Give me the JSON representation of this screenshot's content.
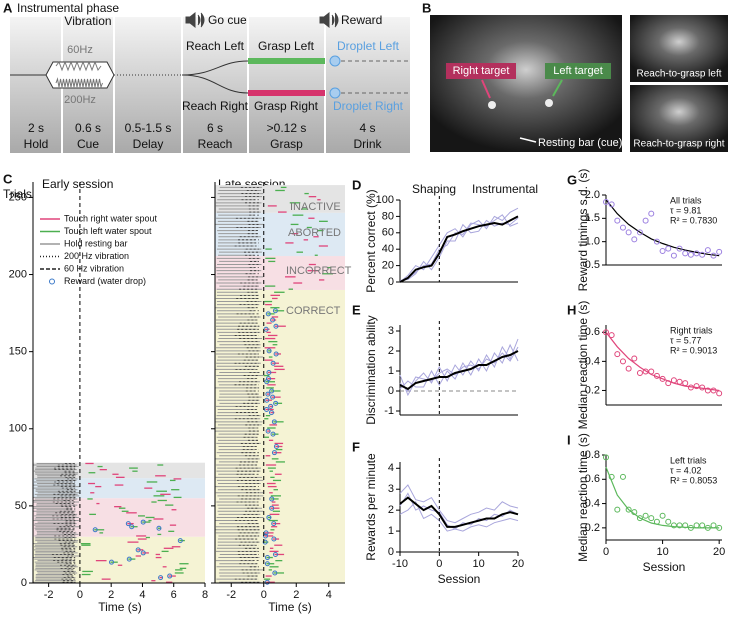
{
  "panel_a": {
    "label": "A",
    "title": "Instrumental phase",
    "vibration": "Vibration",
    "freq_high": "60Hz",
    "freq_low": "200Hz",
    "go_cue": "Go cue",
    "reward": "Reward",
    "reach_left": "Reach Left",
    "reach_right": "Reach Right",
    "grasp_left": "Grasp Left",
    "grasp_right": "Grasp Right",
    "droplet_left": "Droplet Left",
    "droplet_right": "Droplet Right",
    "durations": [
      "2 s",
      "0.6 s",
      "0.5-1.5 s",
      "6 s",
      ">0.12 s",
      "4 s"
    ],
    "phases": [
      "Hold",
      "Cue",
      "Delay",
      "Reach",
      "Grasp",
      "Drink"
    ]
  },
  "panel_b": {
    "label": "B",
    "right_target": "Right target",
    "left_target": "Left target",
    "resting_bar": "Resting bar (cue)",
    "reach_left": "Reach-to-grasp left",
    "reach_right": "Reach-to-grasp right"
  },
  "panel_c": {
    "label": "C",
    "ylabel": "Trials",
    "ylim": [
      0,
      260
    ],
    "yticks": [
      0,
      50,
      100,
      150,
      200,
      250
    ],
    "xlabel": "Time (s)",
    "vline": 0,
    "early": {
      "title": "Early session",
      "xlim": [
        -3,
        8
      ],
      "xticks": [
        -2,
        0,
        2,
        4,
        6,
        8
      ]
    },
    "late": {
      "title": "Late session",
      "xlim": [
        -3,
        5
      ],
      "xticks": [
        -2,
        0,
        2,
        4
      ]
    },
    "legend": [
      {
        "label": "Touch right water spout",
        "color": "#e0457b",
        "style": "solid"
      },
      {
        "label": "Touch left water spout",
        "color": "#4caf50",
        "style": "solid"
      },
      {
        "label": "Hold resting bar",
        "color": "#999999",
        "style": "solid"
      },
      {
        "label": "200 Hz vibration",
        "color": "#222222",
        "style": "dotted"
      },
      {
        "label": "60 Hz vibration",
        "color": "#222222",
        "style": "dashed"
      },
      {
        "label": "Reward (water drop)",
        "color": "#3a78c8",
        "style": "marker"
      }
    ],
    "outcomes": [
      "INACTIVE",
      "ABORTED",
      "INCORRECT",
      "CORRECT"
    ]
  },
  "chart_data": [
    {
      "panel": "D",
      "type": "line",
      "ylabel": "Percent correct  (%)",
      "annotations": [
        "Shaping",
        "Instrumental"
      ],
      "x": [
        -10,
        -8,
        -6,
        -4,
        -2,
        0,
        2,
        4,
        6,
        8,
        10,
        12,
        14,
        16,
        18,
        20
      ],
      "xlim": [
        -10,
        20
      ],
      "vline": 0,
      "ylim": [
        0,
        100
      ],
      "yticks": [
        0,
        20,
        40,
        60,
        80,
        100
      ],
      "series": [
        {
          "color": "#a9a6dc",
          "values": [
            0,
            8,
            20,
            15,
            30,
            45,
            60,
            65,
            55,
            70,
            75,
            65,
            80,
            75,
            85,
            90
          ]
        },
        {
          "color": "#a9a6dc",
          "values": [
            2,
            3,
            10,
            25,
            15,
            30,
            50,
            50,
            70,
            60,
            62,
            75,
            68,
            72,
            70,
            78
          ]
        },
        {
          "color": "#a9a6dc",
          "values": [
            0,
            5,
            12,
            20,
            22,
            40,
            45,
            60,
            58,
            72,
            70,
            68,
            75,
            82,
            68,
            72
          ]
        },
        {
          "color": "#000000",
          "values": [
            0,
            5,
            15,
            18,
            20,
            35,
            55,
            58,
            62,
            65,
            68,
            70,
            72,
            70,
            75,
            80
          ]
        }
      ]
    },
    {
      "panel": "E",
      "type": "line",
      "ylabel": "Discrimination ability",
      "x": [
        -10,
        -8,
        -6,
        -4,
        -2,
        0,
        2,
        4,
        6,
        8,
        10,
        12,
        14,
        16,
        18,
        20
      ],
      "xlim": [
        -10,
        20
      ],
      "vline": 0,
      "hline": 0,
      "ylim": [
        -1.2,
        3.3
      ],
      "yticks": [
        -1,
        0,
        1,
        2,
        3
      ],
      "series": [
        {
          "color": "#a9a6dc",
          "values": [
            0.8,
            -0.2,
            0.5,
            0.9,
            0.4,
            1.2,
            0.5,
            1.3,
            0.8,
            1.5,
            1.0,
            1.8,
            1.2,
            2.2,
            1.6,
            2.6
          ]
        },
        {
          "color": "#a9a6dc",
          "values": [
            0.1,
            0.5,
            0.2,
            0.2,
            1.0,
            0.3,
            1.0,
            0.6,
            1.4,
            0.8,
            1.6,
            1.0,
            1.9,
            1.4,
            2.3,
            1.5
          ]
        },
        {
          "color": "#a9a6dc",
          "values": [
            0.4,
            0.0,
            0.7,
            0.6,
            0.5,
            0.9,
            1.1,
            0.8,
            1.2,
            1.3,
            1.1,
            1.6,
            1.4,
            1.9,
            1.5,
            2.2
          ]
        },
        {
          "color": "#000000",
          "values": [
            0.3,
            0.1,
            0.4,
            0.5,
            0.6,
            0.7,
            0.7,
            0.9,
            1.0,
            1.1,
            1.3,
            1.3,
            1.5,
            1.7,
            1.8,
            2.0
          ]
        }
      ]
    },
    {
      "panel": "F",
      "type": "line",
      "ylabel": "Rewards per minute",
      "xlabel": "Session",
      "x": [
        -10,
        -8,
        -6,
        -4,
        -2,
        0,
        2,
        4,
        6,
        8,
        10,
        12,
        14,
        16,
        18,
        20
      ],
      "xlim": [
        -10,
        20
      ],
      "xticks": [
        -10,
        0,
        10,
        20
      ],
      "vline": 0,
      "ylim": [
        0,
        4.3
      ],
      "yticks": [
        0,
        1,
        2,
        3,
        4
      ],
      "series": [
        {
          "color": "#a9a6dc",
          "values": [
            2.8,
            3.2,
            2.5,
            2.4,
            2.6,
            2.0,
            1.5,
            1.4,
            1.6,
            1.8,
            1.9,
            2.1,
            2.0,
            2.4,
            2.2,
            2.1
          ]
        },
        {
          "color": "#a9a6dc",
          "values": [
            1.8,
            2.0,
            2.4,
            1.6,
            1.8,
            1.5,
            1.0,
            1.1,
            1.0,
            1.2,
            1.3,
            1.2,
            1.4,
            1.5,
            1.6,
            1.5
          ]
        },
        {
          "color": "#a9a6dc",
          "values": [
            2.2,
            2.8,
            2.0,
            2.2,
            2.0,
            1.9,
            1.3,
            1.1,
            1.4,
            1.3,
            1.6,
            1.5,
            1.8,
            1.7,
            2.0,
            1.8
          ]
        },
        {
          "color": "#000000",
          "values": [
            2.3,
            2.6,
            2.3,
            2.0,
            2.2,
            1.8,
            1.2,
            1.2,
            1.3,
            1.4,
            1.5,
            1.6,
            1.6,
            1.8,
            1.9,
            1.8
          ]
        }
      ]
    },
    {
      "panel": "G",
      "type": "scatter",
      "ylabel": "Reward timings s.d. (s)",
      "annotations": [
        "All trials",
        "τ = 9.81",
        "R² = 0.7830"
      ],
      "xlim": [
        0,
        20.5
      ],
      "ylim": [
        0.5,
        2.0
      ],
      "yticks": [
        {
          "value": 0.5,
          "label": "0.5"
        },
        {
          "value": 1.0,
          "label": "1.0"
        },
        {
          "value": 1.5,
          "label": "1.5"
        },
        {
          "value": 2.0,
          "label": "2.0"
        }
      ],
      "color": "#9b7fe0",
      "x": [
        0,
        1,
        2,
        3,
        4,
        5,
        6,
        7,
        8,
        9,
        10,
        11,
        12,
        13,
        14,
        15,
        16,
        17,
        18,
        19,
        20
      ],
      "values": [
        1.85,
        1.8,
        1.45,
        1.3,
        1.2,
        1.05,
        1.2,
        1.45,
        1.6,
        1.0,
        0.8,
        0.85,
        0.7,
        0.85,
        0.75,
        0.72,
        0.75,
        0.72,
        0.82,
        0.7,
        0.78
      ],
      "fit_color": "#000000",
      "fit_x": [
        0,
        2,
        4,
        6,
        8,
        10,
        12,
        14,
        16,
        18,
        20
      ],
      "fit_values": [
        1.9,
        1.6,
        1.37,
        1.2,
        1.06,
        0.96,
        0.88,
        0.82,
        0.77,
        0.73,
        0.7
      ]
    },
    {
      "panel": "H",
      "type": "scatter",
      "ylabel": "Median reaction time (s)",
      "annotations": [
        "Right trials",
        "τ = 5.77",
        "R² = 0.9013"
      ],
      "xlim": [
        0,
        20.5
      ],
      "ylim": [
        0.1,
        0.65
      ],
      "yticks": [
        {
          "value": 0.2,
          "label": "0.2"
        },
        {
          "value": 0.4,
          "label": "0.4"
        },
        {
          "value": 0.6,
          "label": "0.6"
        }
      ],
      "color": "#e0457b",
      "x": [
        0,
        1,
        2,
        3,
        4,
        5,
        6,
        7,
        8,
        9,
        10,
        11,
        12,
        13,
        14,
        15,
        16,
        17,
        18,
        19,
        20
      ],
      "values": [
        0.6,
        0.58,
        0.45,
        0.4,
        0.35,
        0.42,
        0.32,
        0.33,
        0.33,
        0.3,
        0.28,
        0.25,
        0.27,
        0.26,
        0.25,
        0.22,
        0.23,
        0.22,
        0.2,
        0.2,
        0.18
      ],
      "fit_color": "#e0457b",
      "fit_x": [
        0,
        2,
        4,
        6,
        8,
        10,
        12,
        14,
        16,
        18,
        20
      ],
      "fit_values": [
        0.6,
        0.5,
        0.42,
        0.36,
        0.31,
        0.28,
        0.25,
        0.23,
        0.22,
        0.21,
        0.2
      ]
    },
    {
      "panel": "I",
      "type": "scatter",
      "ylabel": "Median reaction time (s)",
      "xlabel": "Session",
      "annotations": [
        "Left trials",
        "τ = 4.02",
        "R² = 0.8053"
      ],
      "xlim": [
        0,
        20.5
      ],
      "xticks": [
        0,
        10,
        20
      ],
      "ylim": [
        0.1,
        0.8
      ],
      "yticks": [
        {
          "value": 0.2,
          "label": "0.2"
        },
        {
          "value": 0.4,
          "label": "0.4"
        },
        {
          "value": 0.6,
          "label": "0.6"
        },
        {
          "value": 0.8,
          "label": "0.8"
        }
      ],
      "color": "#5cb85c",
      "x": [
        0,
        1,
        2,
        3,
        4,
        5,
        6,
        7,
        8,
        9,
        10,
        11,
        12,
        13,
        14,
        15,
        16,
        17,
        18,
        19,
        20
      ],
      "values": [
        0.78,
        0.62,
        0.35,
        0.62,
        0.35,
        0.33,
        0.28,
        0.3,
        0.28,
        0.25,
        0.3,
        0.25,
        0.22,
        0.22,
        0.22,
        0.2,
        0.22,
        0.22,
        0.2,
        0.22,
        0.2
      ],
      "fit_color": "#5cb85c",
      "fit_x": [
        0,
        2,
        4,
        6,
        8,
        10,
        12,
        14,
        16,
        18,
        20
      ],
      "fit_values": [
        0.7,
        0.47,
        0.35,
        0.28,
        0.24,
        0.22,
        0.21,
        0.205,
        0.2,
        0.2,
        0.2
      ]
    }
  ]
}
